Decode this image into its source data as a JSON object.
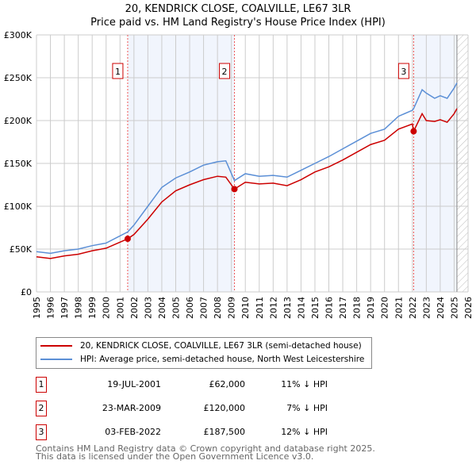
{
  "chart_data": {
    "type": "line",
    "title": "20, KENDRICK CLOSE, COALVILLE, LE67 3LR",
    "subtitle": "Price paid vs. HM Land Registry's House Price Index (HPI)",
    "xlim": [
      1995,
      2026
    ],
    "ylim": [
      0,
      300000
    ],
    "x_ticks": [
      "1995",
      "1996",
      "1997",
      "1998",
      "1999",
      "2000",
      "2001",
      "2002",
      "2003",
      "2004",
      "2005",
      "2006",
      "2007",
      "2008",
      "2009",
      "2010",
      "2011",
      "2012",
      "2013",
      "2014",
      "2015",
      "2016",
      "2017",
      "2018",
      "2019",
      "2020",
      "2021",
      "2022",
      "2023",
      "2024",
      "2025",
      "2026"
    ],
    "y_ticks": [
      {
        "v": 0,
        "l": "£0"
      },
      {
        "v": 50000,
        "l": "£50K"
      },
      {
        "v": 100000,
        "l": "£100K"
      },
      {
        "v": 150000,
        "l": "£150K"
      },
      {
        "v": 200000,
        "l": "£200K"
      },
      {
        "v": 250000,
        "l": "£250K"
      },
      {
        "v": 300000,
        "l": "£300K"
      }
    ],
    "grid": true,
    "future_hatch_from": 2025.2,
    "shaded_ranges": [
      [
        2001.55,
        2009.22
      ],
      [
        2022.09,
        2025.2
      ]
    ],
    "series": [
      {
        "name": "20, KENDRICK CLOSE, COALVILLE, LE67 3LR (semi-detached house)",
        "color": "#cc0000",
        "x": [
          1995,
          1996,
          1997,
          1998,
          1999,
          2000,
          2001.55,
          2002,
          2003,
          2004,
          2005,
          2006,
          2007,
          2008,
          2008.6,
          2009.22,
          2010,
          2011,
          2012,
          2013,
          2014,
          2015,
          2016,
          2017,
          2018,
          2019,
          2020,
          2021,
          2022,
          2022.09,
          2022.7,
          2023,
          2023.6,
          2024,
          2024.5,
          2025,
          2025.2
        ],
        "y": [
          41000,
          39000,
          42000,
          44000,
          48000,
          51000,
          62000,
          67000,
          85000,
          105000,
          118000,
          125000,
          131000,
          135000,
          134000,
          120000,
          128000,
          126000,
          127000,
          124000,
          131000,
          140000,
          146000,
          154000,
          163000,
          172000,
          177000,
          190000,
          196000,
          187500,
          208000,
          200000,
          199000,
          201000,
          198000,
          208000,
          214000
        ]
      },
      {
        "name": "HPI: Average price, semi-detached house, North West Leicestershire",
        "color": "#5b8fd6",
        "x": [
          1995,
          1996,
          1997,
          1998,
          1999,
          2000,
          2001.55,
          2002,
          2003,
          2004,
          2005,
          2006,
          2007,
          2008,
          2008.6,
          2009.22,
          2010,
          2011,
          2012,
          2013,
          2014,
          2015,
          2016,
          2017,
          2018,
          2019,
          2020,
          2021,
          2022,
          2022.09,
          2022.7,
          2023,
          2023.6,
          2024,
          2024.5,
          2025,
          2025.2
        ],
        "y": [
          47000,
          45000,
          48000,
          50000,
          54000,
          57000,
          70000,
          78000,
          100000,
          122000,
          133000,
          140000,
          148000,
          152000,
          153000,
          130000,
          138000,
          135000,
          136000,
          134000,
          142000,
          150000,
          158000,
          167000,
          176000,
          185000,
          190000,
          205000,
          212000,
          214000,
          236000,
          232000,
          226000,
          229000,
          226000,
          238000,
          244000
        ]
      }
    ],
    "markers": [
      {
        "label": "1",
        "x": 2001.55,
        "y": 62000
      },
      {
        "label": "2",
        "x": 2009.22,
        "y": 120000
      },
      {
        "label": "3",
        "x": 2022.09,
        "y": 187500
      }
    ]
  },
  "legend": {
    "property": "20, KENDRICK CLOSE, COALVILLE, LE67 3LR (semi-detached house)",
    "hpi": "HPI: Average price, semi-detached house, North West Leicestershire"
  },
  "transactions": [
    {
      "num": "1",
      "date": "19-JUL-2001",
      "price": "£62,000",
      "hpi": "11% ↓ HPI"
    },
    {
      "num": "2",
      "date": "23-MAR-2009",
      "price": "£120,000",
      "hpi": "7% ↓ HPI"
    },
    {
      "num": "3",
      "date": "03-FEB-2022",
      "price": "£187,500",
      "hpi": "12% ↓ HPI"
    }
  ],
  "footer": {
    "line1": "Contains HM Land Registry data © Crown copyright and database right 2025.",
    "line2": "This data is licensed under the Open Government Licence v3.0."
  }
}
